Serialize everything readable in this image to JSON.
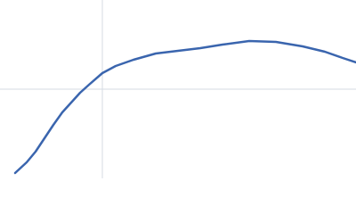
{
  "chart_data": {
    "type": "line",
    "x": [
      17,
      30,
      40,
      50,
      60,
      70,
      80,
      90,
      100,
      115,
      130,
      150,
      175,
      200,
      225,
      250,
      280,
      310,
      340,
      365,
      385,
      400
    ],
    "series": [
      {
        "color": "#3a65ae",
        "values": [
          6,
          18,
          30,
          45,
          60,
          74,
          85,
          96,
          105,
          118,
          126,
          133,
          140,
          143,
          146,
          150,
          154,
          153,
          148,
          142,
          135,
          130
        ]
      }
    ],
    "xlim": [
      0,
      400
    ],
    "ylim": [
      0,
      200
    ],
    "xticks": [
      115
    ],
    "yticks": [
      100
    ],
    "grid": true
  }
}
